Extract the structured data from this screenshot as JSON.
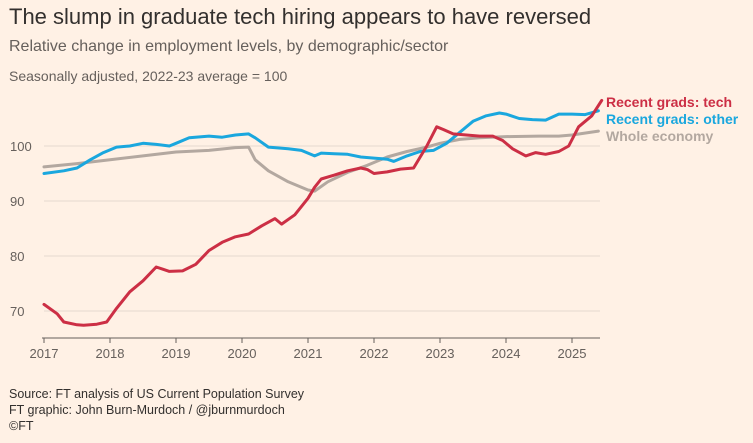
{
  "title": "The slump in graduate tech hiring appears to have reversed",
  "subtitle": "Relative change in employment levels, by demographic/sector",
  "note": "Seasonally adjusted, 2022-23 average = 100",
  "footer": {
    "source": "Source: FT analysis of US Current Population Survey",
    "credit": "FT graphic: John Burn-Murdoch / @jburnmurdoch",
    "brand": "©FT"
  },
  "chart_data": {
    "type": "line",
    "xlim": [
      2017,
      2025.6
    ],
    "ylim": [
      65,
      110
    ],
    "x_ticks": [
      2017,
      2018,
      2019,
      2020,
      2021,
      2022,
      2023,
      2024,
      2025
    ],
    "y_ticks": [
      70,
      80,
      90,
      100
    ],
    "grid": true,
    "legend": "labels at line ends, right",
    "series": [
      {
        "name": "Whole economy",
        "color": "#B3A8A0",
        "points": [
          [
            2017.0,
            96.2
          ],
          [
            2017.5,
            96.8
          ],
          [
            2018.0,
            97.5
          ],
          [
            2018.5,
            98.2
          ],
          [
            2019.0,
            98.9
          ],
          [
            2019.5,
            99.2
          ],
          [
            2019.9,
            99.7
          ],
          [
            2020.1,
            99.8
          ],
          [
            2020.2,
            97.5
          ],
          [
            2020.4,
            95.5
          ],
          [
            2020.7,
            93.5
          ],
          [
            2021.0,
            92.0
          ],
          [
            2021.1,
            91.8
          ],
          [
            2021.3,
            93.5
          ],
          [
            2021.6,
            95.2
          ],
          [
            2021.9,
            96.5
          ],
          [
            2022.2,
            98.0
          ],
          [
            2022.5,
            99.0
          ],
          [
            2022.8,
            99.8
          ],
          [
            2023.0,
            100.5
          ],
          [
            2023.3,
            101.2
          ],
          [
            2023.6,
            101.5
          ],
          [
            2024.0,
            101.7
          ],
          [
            2024.5,
            101.8
          ],
          [
            2024.8,
            101.8
          ],
          [
            2025.0,
            102.0
          ],
          [
            2025.4,
            102.7
          ]
        ]
      },
      {
        "name": "Recent grads: other",
        "color": "#1AA7DE",
        "points": [
          [
            2017.0,
            95.0
          ],
          [
            2017.3,
            95.5
          ],
          [
            2017.5,
            96.0
          ],
          [
            2017.7,
            97.5
          ],
          [
            2017.9,
            98.8
          ],
          [
            2018.1,
            99.8
          ],
          [
            2018.3,
            100.0
          ],
          [
            2018.5,
            100.5
          ],
          [
            2018.7,
            100.3
          ],
          [
            2018.9,
            100.0
          ],
          [
            2019.0,
            100.5
          ],
          [
            2019.2,
            101.5
          ],
          [
            2019.5,
            101.8
          ],
          [
            2019.7,
            101.6
          ],
          [
            2019.9,
            102.0
          ],
          [
            2020.1,
            102.2
          ],
          [
            2020.2,
            101.5
          ],
          [
            2020.4,
            99.8
          ],
          [
            2020.7,
            99.5
          ],
          [
            2020.9,
            99.2
          ],
          [
            2021.1,
            98.2
          ],
          [
            2021.2,
            98.7
          ],
          [
            2021.4,
            98.6
          ],
          [
            2021.6,
            98.5
          ],
          [
            2021.8,
            98.0
          ],
          [
            2022.0,
            97.8
          ],
          [
            2022.2,
            97.6
          ],
          [
            2022.3,
            97.2
          ],
          [
            2022.5,
            98.2
          ],
          [
            2022.7,
            99.0
          ],
          [
            2022.9,
            99.2
          ],
          [
            2023.1,
            100.5
          ],
          [
            2023.3,
            102.5
          ],
          [
            2023.5,
            104.5
          ],
          [
            2023.7,
            105.5
          ],
          [
            2023.9,
            106.0
          ],
          [
            2024.0,
            105.8
          ],
          [
            2024.2,
            105.0
          ],
          [
            2024.4,
            104.8
          ],
          [
            2024.6,
            104.7
          ],
          [
            2024.8,
            105.8
          ],
          [
            2025.0,
            105.8
          ],
          [
            2025.2,
            105.7
          ],
          [
            2025.4,
            106.4
          ]
        ]
      },
      {
        "name": "Recent grads: tech",
        "color": "#CC2F45",
        "points": [
          [
            2017.0,
            71.2
          ],
          [
            2017.2,
            69.5
          ],
          [
            2017.3,
            68.0
          ],
          [
            2017.5,
            67.5
          ],
          [
            2017.6,
            67.4
          ],
          [
            2017.8,
            67.6
          ],
          [
            2017.95,
            68.0
          ],
          [
            2018.1,
            70.5
          ],
          [
            2018.3,
            73.5
          ],
          [
            2018.5,
            75.5
          ],
          [
            2018.7,
            78.0
          ],
          [
            2018.8,
            77.6
          ],
          [
            2018.9,
            77.2
          ],
          [
            2019.1,
            77.3
          ],
          [
            2019.3,
            78.5
          ],
          [
            2019.5,
            81.0
          ],
          [
            2019.7,
            82.5
          ],
          [
            2019.9,
            83.5
          ],
          [
            2020.1,
            84.0
          ],
          [
            2020.3,
            85.5
          ],
          [
            2020.5,
            86.8
          ],
          [
            2020.6,
            85.8
          ],
          [
            2020.8,
            87.5
          ],
          [
            2021.0,
            90.5
          ],
          [
            2021.1,
            92.5
          ],
          [
            2021.2,
            94.0
          ],
          [
            2021.4,
            94.7
          ],
          [
            2021.6,
            95.5
          ],
          [
            2021.8,
            96.0
          ],
          [
            2021.9,
            95.7
          ],
          [
            2022.0,
            95.0
          ],
          [
            2022.2,
            95.3
          ],
          [
            2022.4,
            95.8
          ],
          [
            2022.6,
            96.0
          ],
          [
            2022.8,
            100.0
          ],
          [
            2022.95,
            103.5
          ],
          [
            2023.05,
            103.0
          ],
          [
            2023.2,
            102.2
          ],
          [
            2023.4,
            102.0
          ],
          [
            2023.6,
            101.8
          ],
          [
            2023.8,
            101.8
          ],
          [
            2023.95,
            101.0
          ],
          [
            2024.1,
            99.5
          ],
          [
            2024.3,
            98.2
          ],
          [
            2024.45,
            98.8
          ],
          [
            2024.6,
            98.5
          ],
          [
            2024.8,
            99.0
          ],
          [
            2024.95,
            100.0
          ],
          [
            2025.1,
            103.5
          ],
          [
            2025.3,
            105.5
          ],
          [
            2025.45,
            108.3
          ]
        ]
      }
    ]
  }
}
